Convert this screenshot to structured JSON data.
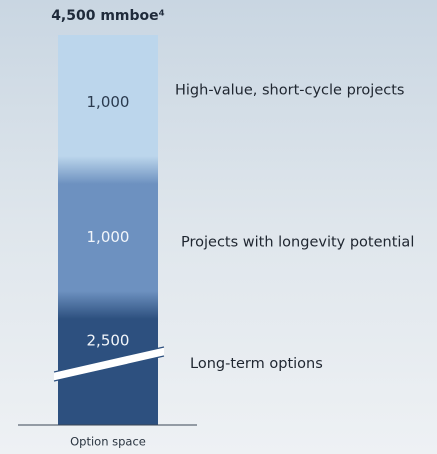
{
  "chart_data": {
    "type": "bar",
    "stacked": true,
    "axis_break": true,
    "title": "4,500 mmboe⁴",
    "categories": [
      "Option space"
    ],
    "series": [
      {
        "name": "Long-term options",
        "color": "#2d507f",
        "values": [
          2500
        ],
        "value_labels": [
          "2,500"
        ]
      },
      {
        "name": "Projects with longevity potential",
        "color": "#6d91c0",
        "values": [
          1000
        ],
        "value_labels": [
          "1,000"
        ]
      },
      {
        "name": "High-value, short-cycle projects",
        "color": "#bcd6ec",
        "values": [
          1000
        ],
        "value_labels": [
          "1,000"
        ]
      }
    ]
  }
}
